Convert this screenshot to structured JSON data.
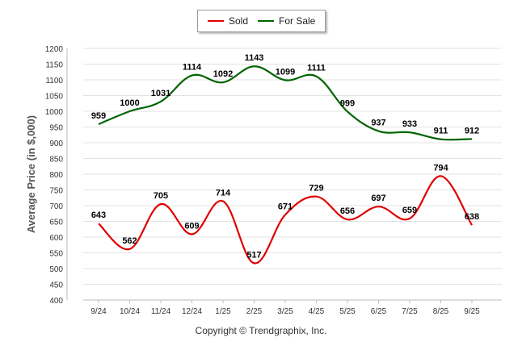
{
  "chart_data": {
    "type": "line",
    "title": "",
    "xlabel": "",
    "ylabel": "Average Price (in $,000)",
    "categories": [
      "9/24",
      "10/24",
      "11/24",
      "12/24",
      "1/25",
      "2/25",
      "3/25",
      "4/25",
      "5/25",
      "6/25",
      "7/25",
      "8/25",
      "9/25"
    ],
    "ylim": [
      400,
      1200
    ],
    "ytick_step": 50,
    "grid": "horizontal",
    "legend_position": "top-center",
    "series": [
      {
        "name": "Sold",
        "color": "#e00000",
        "values": [
          643,
          562,
          705,
          609,
          714,
          517,
          671,
          729,
          656,
          697,
          659,
          794,
          638
        ]
      },
      {
        "name": "For Sale",
        "color": "#006400",
        "values": [
          959,
          1000,
          1031,
          1114,
          1092,
          1143,
          1099,
          1111,
          999,
          937,
          933,
          911,
          912
        ]
      }
    ]
  },
  "footer": {
    "copyright": "Copyright © Trendgraphix, Inc."
  }
}
